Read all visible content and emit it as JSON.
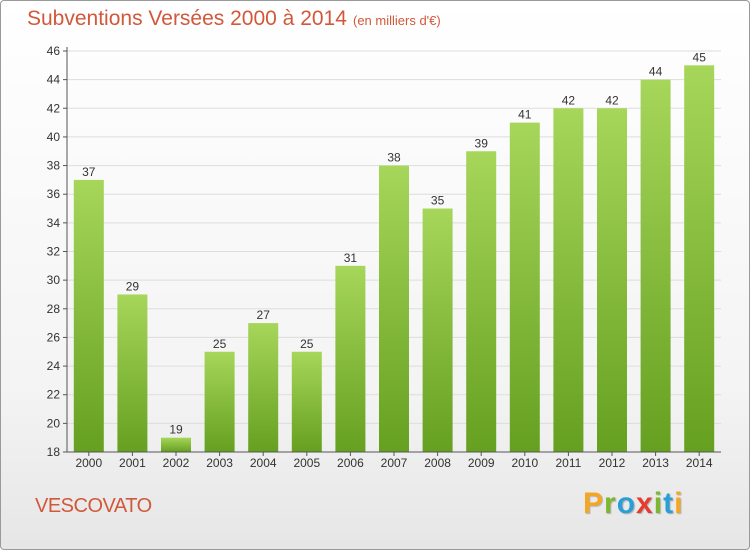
{
  "header": {
    "title": "Subventions Versées 2000 à 2014",
    "subtitle": "(en milliers d'€)"
  },
  "footer": {
    "commune": "VESCOVATO",
    "brand": {
      "letters": [
        "P",
        "r",
        "o",
        "x",
        "i",
        "t",
        "i"
      ],
      "colors": [
        "#f5a623",
        "#7cb82f",
        "#2a9fd6",
        "#e63b2e",
        "#7cb82f",
        "#2a9fd6",
        "#f5a623"
      ]
    }
  },
  "colors": {
    "accent": "#d2583a",
    "bar_light": "#a6d65a",
    "bar_dark": "#66a020",
    "axis": "#555555",
    "grid": "#dddddd"
  },
  "chart_data": {
    "type": "bar",
    "categories": [
      "2000",
      "2001",
      "2002",
      "2003",
      "2004",
      "2005",
      "2006",
      "2007",
      "2008",
      "2009",
      "2010",
      "2011",
      "2012",
      "2013",
      "2014"
    ],
    "values": [
      37,
      29,
      19,
      25,
      27,
      25,
      31,
      38,
      35,
      39,
      41,
      42,
      42,
      44,
      45
    ],
    "ylim": [
      18,
      46
    ],
    "yticks": [
      18,
      20,
      22,
      24,
      26,
      28,
      30,
      32,
      34,
      36,
      38,
      40,
      42,
      44,
      46
    ],
    "data_labels": true,
    "grid": true
  }
}
